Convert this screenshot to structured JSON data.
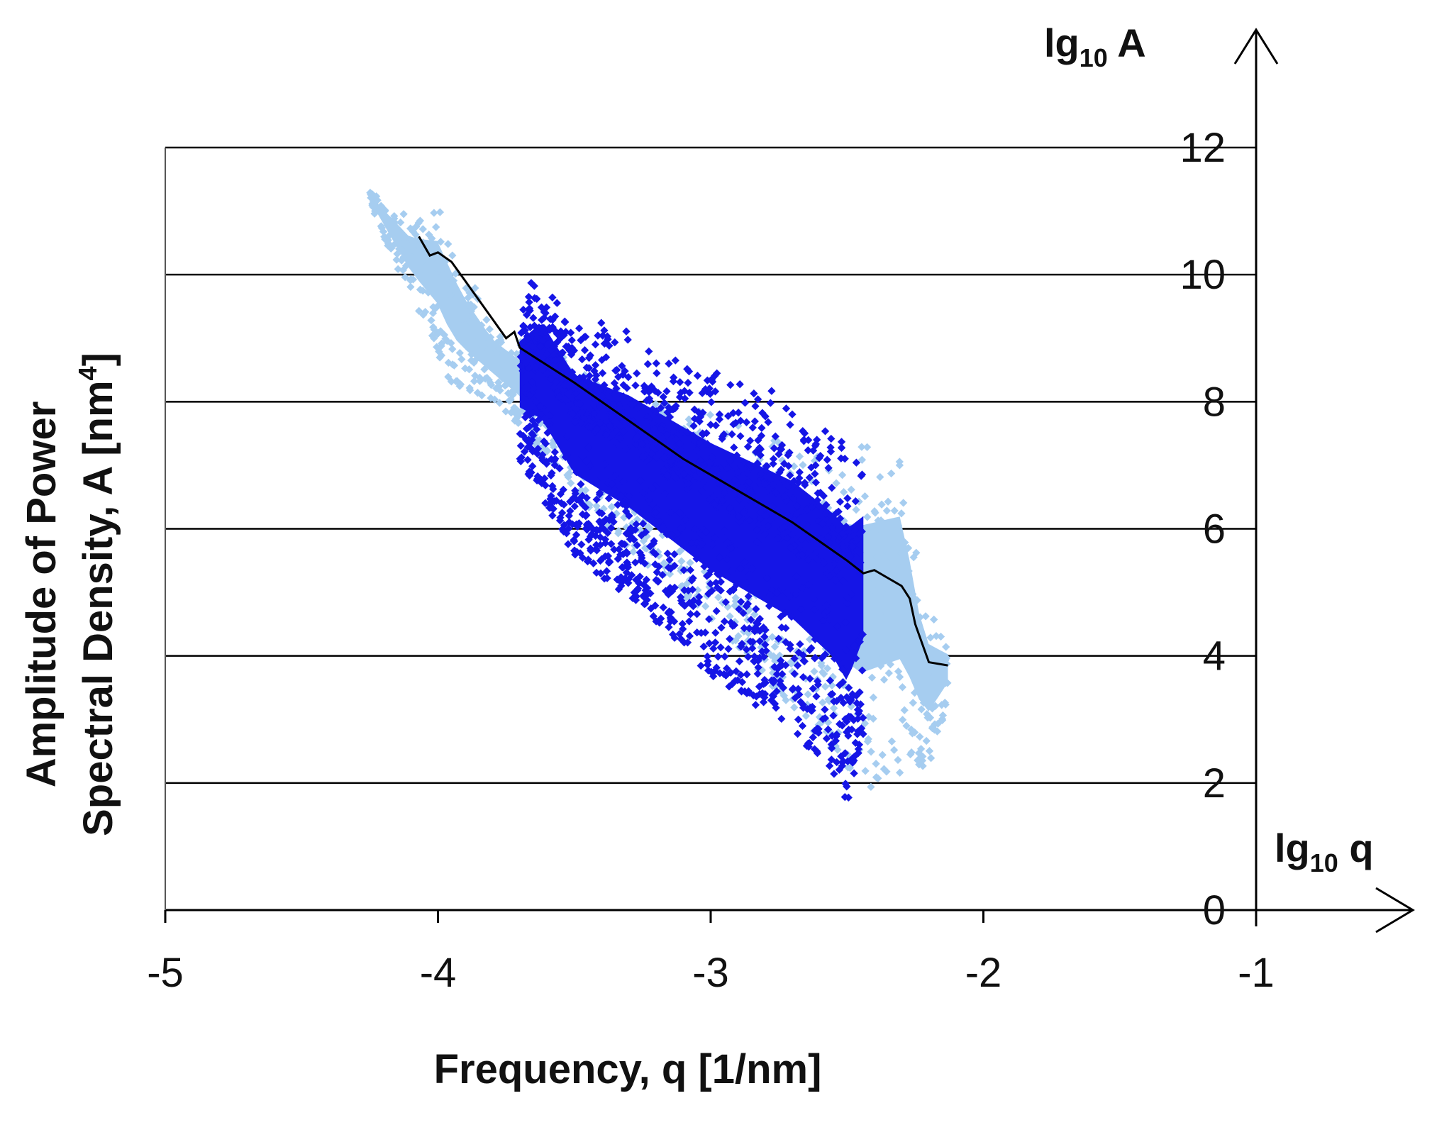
{
  "chart_data": {
    "type": "scatter",
    "title": "",
    "xlabel": "Frequency,  q  [1/nm]",
    "ylabel_line1": "Amplitude  of  Power",
    "ylabel_line2": "Spectral Density,  A  [nm",
    "ylabel_sup": "4",
    "ylabel_end": "]",
    "x_axis_name": "lg",
    "x_axis_sub": "10",
    "x_axis_var": " q",
    "y_axis_name": "lg",
    "y_axis_sub": "10",
    "y_axis_var": " A",
    "xlim": [
      -5,
      -1
    ],
    "ylim": [
      0,
      12
    ],
    "x_ticks": [
      "-5",
      "-4",
      "-3",
      "-2",
      "-1"
    ],
    "y_ticks": [
      "0",
      "2",
      "4",
      "6",
      "8",
      "10",
      "12"
    ],
    "grid": "horizontal",
    "colors": {
      "light": "#a6cdf0",
      "dark": "#1515e6",
      "line": "#000000"
    },
    "series": [
      {
        "style": "points-light",
        "x_range": [
          -4.25,
          -2.13
        ],
        "upper": [
          [
            -4.25,
            11.3
          ],
          [
            -4.1,
            10.9
          ],
          [
            -4.0,
            11.15
          ],
          [
            -3.9,
            10.1
          ],
          [
            -3.8,
            9.3
          ],
          [
            -3.7,
            9.0
          ],
          [
            -3.0,
            7.9
          ],
          [
            -2.6,
            7.3
          ],
          [
            -2.45,
            7.5
          ],
          [
            -2.3,
            7.6
          ],
          [
            -2.22,
            5.0
          ],
          [
            -2.13,
            4.3
          ]
        ],
        "lower": [
          [
            -4.25,
            11.1
          ],
          [
            -4.1,
            9.6
          ],
          [
            -3.95,
            8.2
          ],
          [
            -3.8,
            8.0
          ],
          [
            -3.7,
            7.6
          ],
          [
            -3.4,
            6.0
          ],
          [
            -3.0,
            4.5
          ],
          [
            -2.6,
            2.6
          ],
          [
            -2.45,
            1.7
          ],
          [
            -2.3,
            2.0
          ],
          [
            -2.2,
            2.2
          ],
          [
            -2.13,
            3.2
          ]
        ]
      },
      {
        "style": "points-dark",
        "x_range": [
          -3.7,
          -2.44
        ],
        "upper": [
          [
            -3.7,
            9.6
          ],
          [
            -3.62,
            10.2
          ],
          [
            -3.5,
            9.4
          ],
          [
            -3.3,
            9.2
          ],
          [
            -3.0,
            8.6
          ],
          [
            -2.7,
            8.1
          ],
          [
            -2.5,
            7.5
          ],
          [
            -2.44,
            7.4
          ]
        ],
        "lower": [
          [
            -3.7,
            7.0
          ],
          [
            -3.5,
            5.5
          ],
          [
            -3.3,
            4.8
          ],
          [
            -3.0,
            3.6
          ],
          [
            -2.7,
            2.7
          ],
          [
            -2.55,
            2.0
          ],
          [
            -2.5,
            1.5
          ],
          [
            -2.44,
            2.6
          ]
        ]
      },
      {
        "style": "line",
        "x": [
          -4.07,
          -4.03,
          -4.0,
          -3.95,
          -3.9,
          -3.85,
          -3.8,
          -3.75,
          -3.72,
          -3.7,
          -3.5,
          -3.3,
          -3.1,
          -2.9,
          -2.7,
          -2.5,
          -2.44,
          -2.4,
          -2.3,
          -2.27,
          -2.25,
          -2.2,
          -2.13
        ],
        "y": [
          10.6,
          10.3,
          10.35,
          10.2,
          9.9,
          9.6,
          9.3,
          9.0,
          9.1,
          8.85,
          8.3,
          7.7,
          7.1,
          6.6,
          6.1,
          5.5,
          5.3,
          5.35,
          5.1,
          4.9,
          4.5,
          3.9,
          3.85
        ]
      }
    ]
  }
}
